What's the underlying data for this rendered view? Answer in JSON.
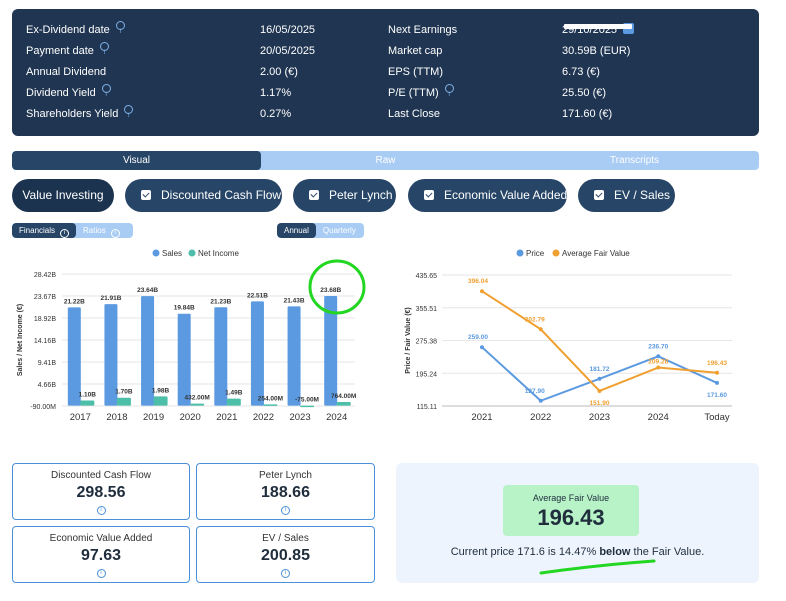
{
  "info": {
    "rows": [
      {
        "label": "Ex-Dividend date",
        "value": "16/05/2025",
        "label2": "Next Earnings",
        "value2": "29/10/2025"
      },
      {
        "label": "Payment date",
        "value": "20/05/2025",
        "label2": "Market cap",
        "value2": "30.59B (EUR)"
      },
      {
        "label": "Annual Dividend",
        "value": "2.00 (€)",
        "label2": "EPS (TTM)",
        "value2": "6.73 (€)"
      },
      {
        "label": "Dividend Yield",
        "value": "1.17%",
        "label2": "P/E (TTM)",
        "value2": "25.50 (€)"
      },
      {
        "label": "Shareholders Yield",
        "value": "0.27%",
        "label2": "Last Close",
        "value2": "171.60 (€)"
      }
    ],
    "info_glyph": "i"
  },
  "tabs": [
    "Visual",
    "Raw",
    "Transcripts"
  ],
  "methods": [
    "Value Investing",
    "Discounted Cash Flow",
    "Peter Lynch",
    "Economic Value Added",
    "EV / Sales"
  ],
  "toggles": {
    "financials": "Financials",
    "ratios": "Ratios",
    "annual": "Annual",
    "quarterly": "Quarterly"
  },
  "chart_data": [
    {
      "type": "bar",
      "categories": [
        "2017",
        "2018",
        "2019",
        "2020",
        "2021",
        "2022",
        "2023",
        "2024"
      ],
      "series": [
        {
          "name": "Sales",
          "color": "#5b9ae0",
          "values": [
            21.22,
            21.91,
            23.64,
            19.84,
            21.23,
            22.51,
            21.43,
            23.68
          ],
          "labels": [
            "21.22B",
            "21.91B",
            "23.64B",
            "19.84B",
            "21.23B",
            "22.51B",
            "21.43B",
            "23.68B"
          ]
        },
        {
          "name": "Net Income",
          "color": "#4dbfa8",
          "values": [
            1.1,
            1.7,
            1.98,
            0.432,
            1.49,
            0.254,
            -0.075,
            0.764
          ],
          "labels": [
            "1.10B",
            "1.70B",
            "1.98B",
            "432.00M",
            "1.49B",
            "254.00M",
            "-75.00M",
            "764.00M"
          ]
        }
      ],
      "ylabel": "Sales / Net Income (€)",
      "yticks": [
        "-90.00M",
        "4.66B",
        "9.41B",
        "14.16B",
        "18.92B",
        "23.67B",
        "28.42B"
      ],
      "ylim": [
        -0.09,
        28.42
      ],
      "legend_position": "top"
    },
    {
      "type": "line",
      "categories": [
        "2021",
        "2022",
        "2023",
        "2024",
        "Today"
      ],
      "series": [
        {
          "name": "Price",
          "color": "#5b9ae0",
          "values": [
            259.0,
            127.9,
            181.72,
            236.7,
            171.6
          ],
          "labels": [
            "259.00",
            "127.90",
            "181.72",
            "236.70",
            "171.60"
          ]
        },
        {
          "name": "Average Fair Value",
          "color": "#f0a030",
          "values": [
            396.04,
            302.79,
            151.9,
            209.28,
            196.43
          ],
          "labels": [
            "396.04",
            "302.79",
            "151.90",
            "209.28",
            "196.43"
          ]
        }
      ],
      "ylabel": "Price / Fair Value (€)",
      "yticks": [
        "115.11",
        "195.24",
        "275.38",
        "355.51",
        "435.65"
      ],
      "ylim": [
        115.11,
        435.65
      ],
      "legend_position": "top"
    }
  ],
  "valuations": [
    {
      "label": "Discounted Cash Flow",
      "value": "298.56"
    },
    {
      "label": "Peter Lynch",
      "value": "188.66"
    },
    {
      "label": "Economic Value Added",
      "value": "97.63"
    },
    {
      "label": "EV / Sales",
      "value": "200.85"
    }
  ],
  "fair_value": {
    "label": "Average Fair Value",
    "value": "196.43",
    "text_before": "Current price 171.6 is 14.47% ",
    "text_bold": "below",
    "text_after": " the Fair Value."
  },
  "colors": {
    "panel": "#1f3551",
    "accent": "#5b9ae0",
    "net_income": "#4dbfa8",
    "fair_value": "#f0a030",
    "annotation": "#22d622"
  }
}
